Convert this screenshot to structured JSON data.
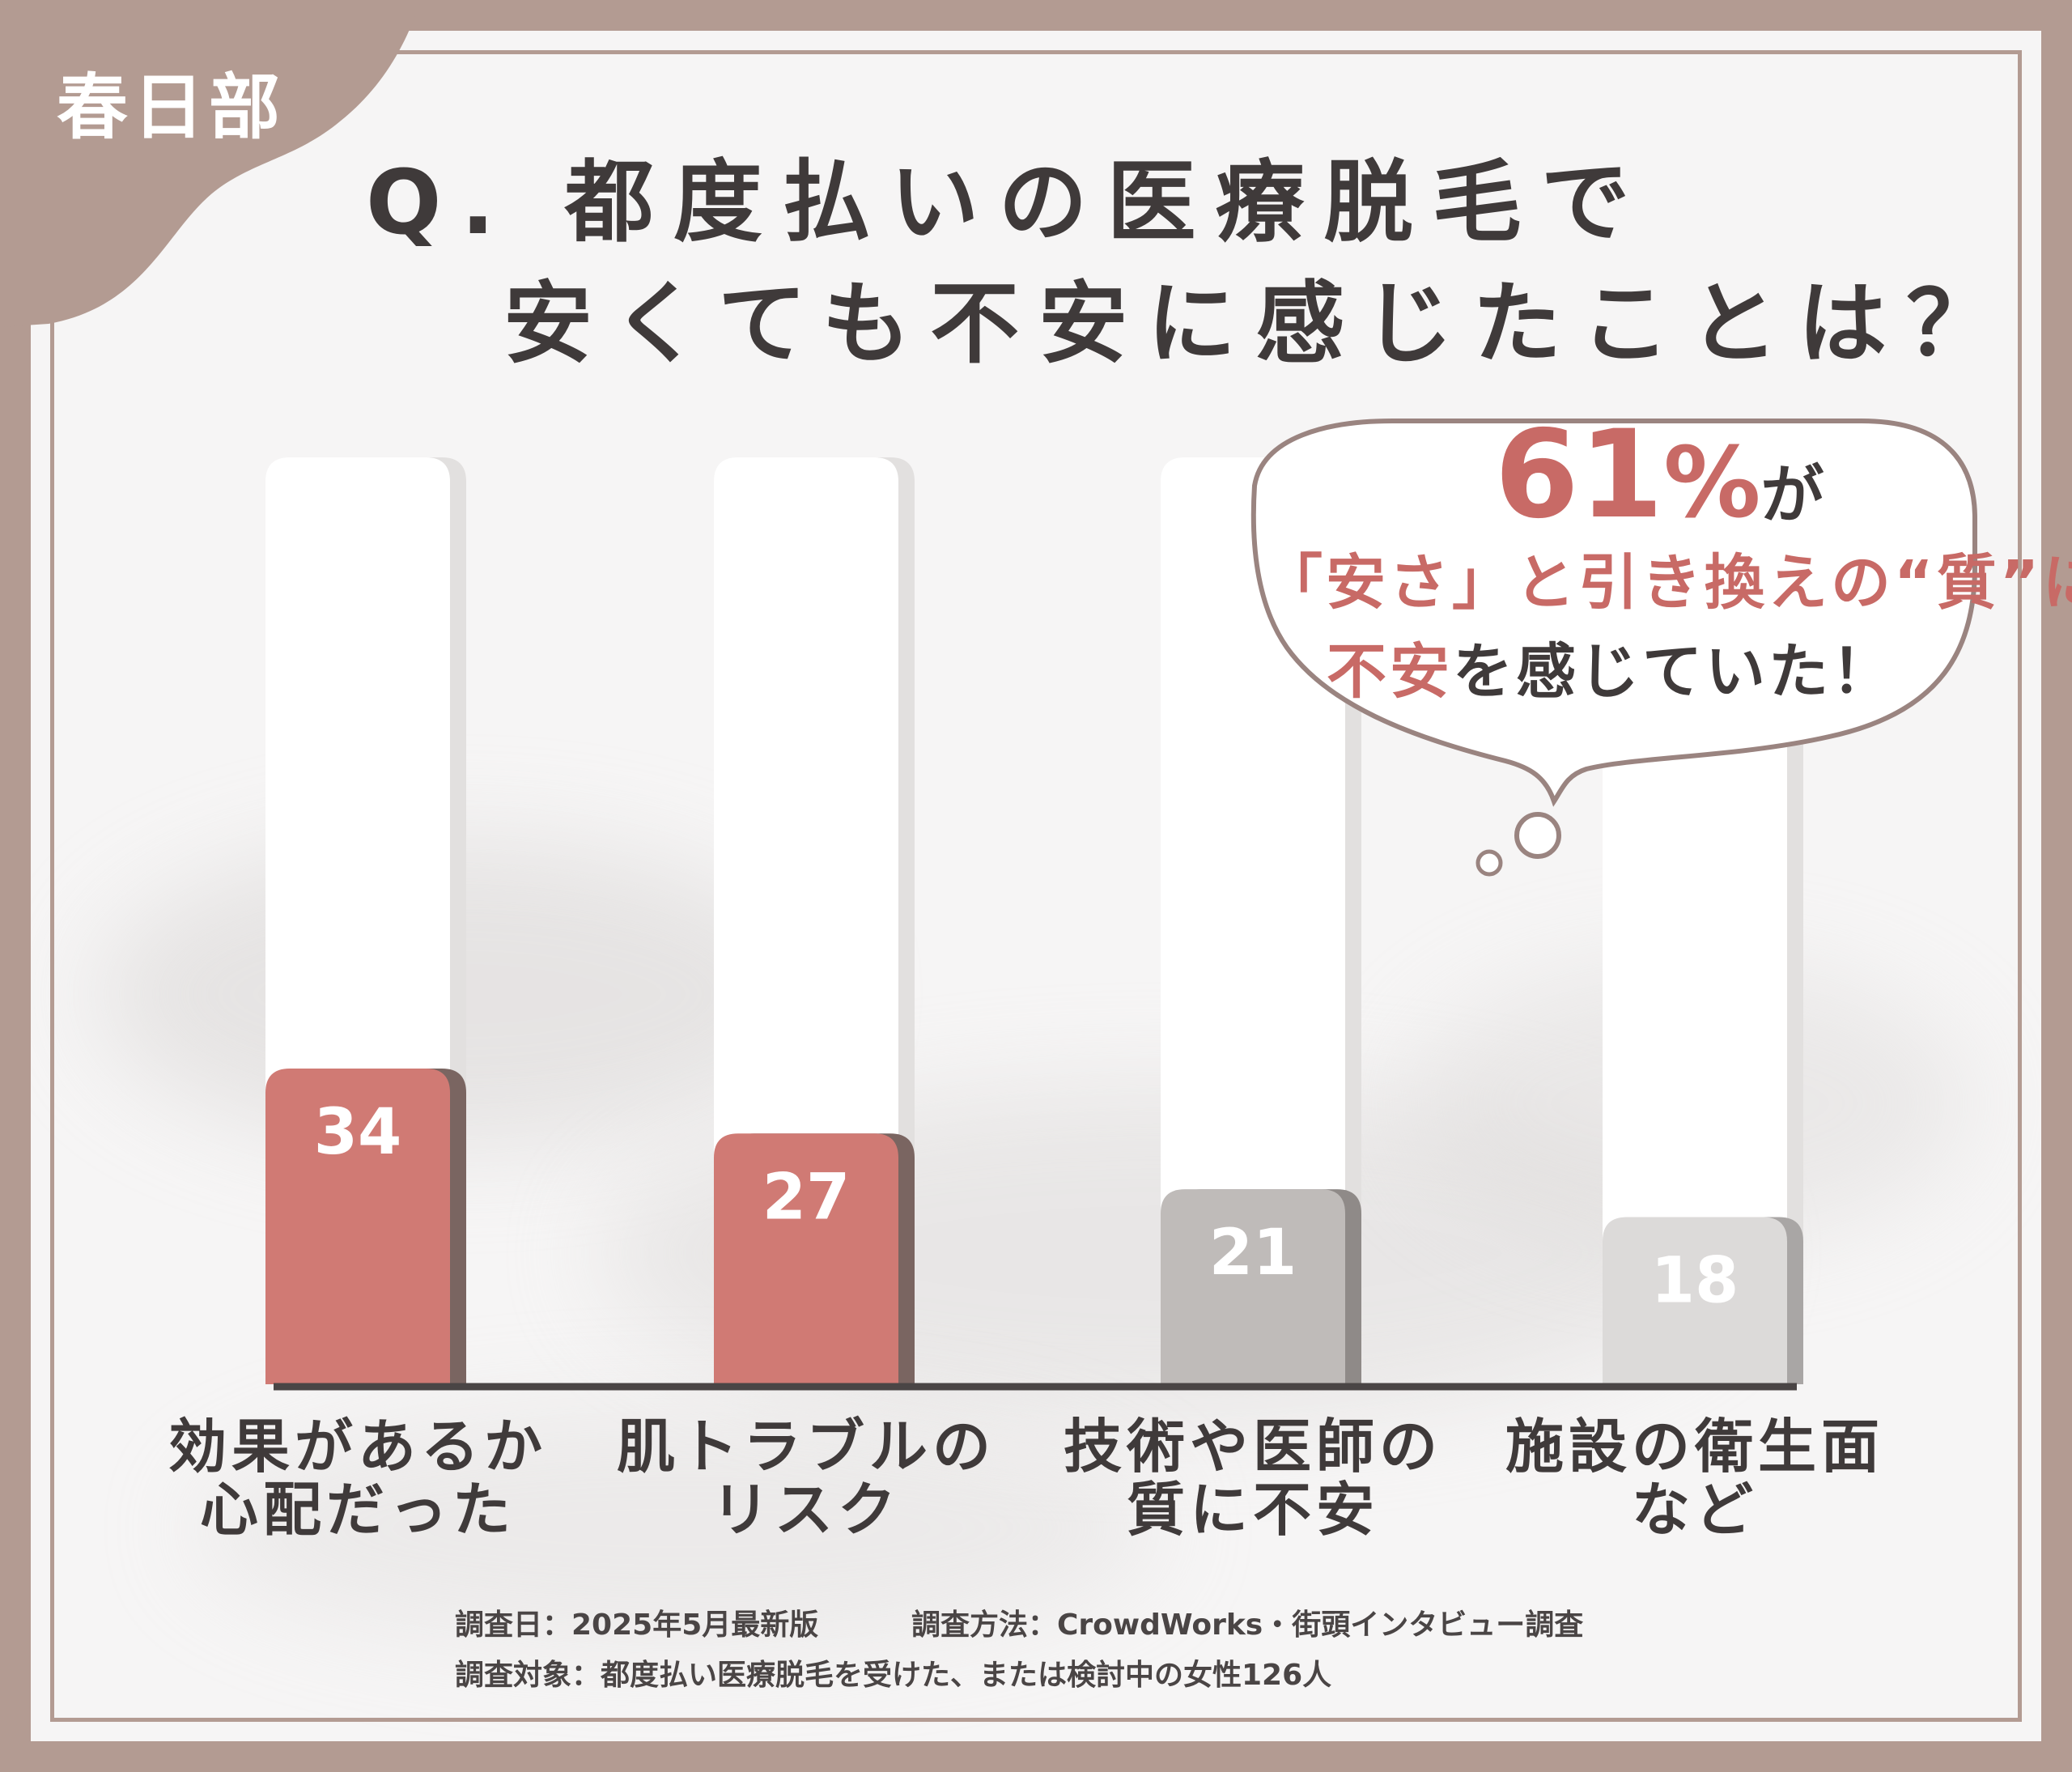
{
  "badge": {
    "region": "春日部"
  },
  "title": {
    "line1": "Q. 都度払いの医療脱毛で",
    "line2": "安くても不安に感じたことは？"
  },
  "callout": {
    "percent": "61",
    "percent_sign": "%",
    "suffix": "が",
    "line2_accent": "「安さ」と引き換えの“質”に",
    "line3_accent": "不安",
    "line3_rest": "を感じていた！"
  },
  "chart_data": {
    "type": "bar",
    "categories": [
      "効果があるか\n心配だった",
      "肌トラブルの\nリスク",
      "技術や医師の\n質に不安",
      "施設の衛生面\nなど"
    ],
    "values": [
      34,
      27,
      21,
      18
    ],
    "ylim": [
      0,
      34
    ],
    "highlighted": [
      true,
      true,
      false,
      false
    ],
    "colors": {
      "highlight": "#d07a74",
      "highlight_shadow": "#7a6561",
      "muted": [
        "#bfbbb9",
        "#dcdad9"
      ],
      "muted_shadow": [
        "#8f8a88",
        "#a9a6a5"
      ],
      "baseline": "#4a4545"
    }
  },
  "footer": {
    "date": "調査日：2025年5月最新版",
    "method": "調査方法：CrowdWorks・街頭インタビュー調査",
    "subjects": "調査対象：都度払い医療脱毛を受けた、または検討中の女性126人"
  }
}
